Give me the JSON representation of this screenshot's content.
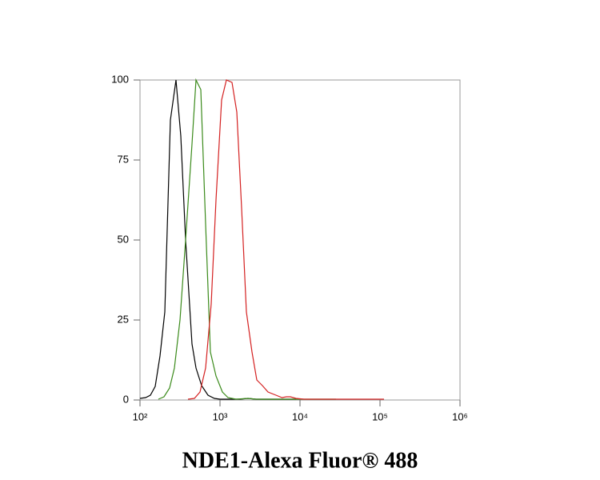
{
  "chart_data": {
    "type": "line",
    "xlabel": "NDE1-Alexa Fluor® 488",
    "xscale": "log",
    "xlim": [
      100,
      1000000
    ],
    "xticks": [
      {
        "value": 100,
        "label": "10²"
      },
      {
        "value": 1000,
        "label": "10³"
      },
      {
        "value": 10000,
        "label": "10⁴"
      },
      {
        "value": 100000,
        "label": "10⁵"
      },
      {
        "value": 1000000,
        "label": "10⁶"
      }
    ],
    "ylim": [
      0,
      100
    ],
    "yticks": [
      0,
      25,
      50,
      75,
      100
    ],
    "series": [
      {
        "color": "#000000",
        "x": [
          100,
          117.5,
          134.9,
          154.9,
          177.8,
          204.2,
          239.9,
          281.8,
          323.6,
          371.5,
          446.7,
          501.2,
          588.8,
          707.9,
          851.1,
          1000,
          1778.3,
          2238.7,
          2818.4,
          5623.4,
          8912.5
        ],
        "values": [
          0.5,
          0.75,
          1.5,
          4.25,
          13.75,
          27.5,
          87.5,
          100,
          82.5,
          50,
          17.5,
          10,
          4.5,
          1.5,
          0.5,
          0.25,
          0.25,
          0.5,
          0.25,
          0.25,
          0.25
        ]
      },
      {
        "color": "#3a8a1a",
        "x": [
          169.8,
          199.5,
          234.4,
          269.2,
          316.2,
          371.5,
          446.7,
          501.2,
          575.4,
          660.7,
          758.6,
          891.3,
          1071.5,
          1258.9,
          1584.9,
          2238.7,
          2818.4,
          4466.8,
          7079.5,
          28183.8
        ],
        "values": [
          0.25,
          1,
          3.75,
          10,
          25,
          50,
          80,
          100,
          97,
          55,
          15,
          7.5,
          2.5,
          0.75,
          0.25,
          0.5,
          0.25,
          0.25,
          0.25,
          0.25
        ]
      },
      {
        "color": "#d42020",
        "x": [
          398.1,
          478.6,
          562.3,
          660.7,
          776.2,
          891.3,
          1047.1,
          1202.3,
          1412.5,
          1621.8,
          1862.1,
          2138,
          2511.9,
          2884,
          3388.4,
          3981.1,
          5011.9,
          5956.6,
          6760.8,
          7585.8,
          8912.5,
          11220.2,
          17782.8,
          28183.8,
          112201.8
        ],
        "values": [
          0.25,
          0.5,
          2.5,
          10,
          30,
          62.5,
          93.75,
          100,
          99.25,
          90,
          60,
          27.5,
          15,
          6.25,
          4.5,
          2.5,
          1.5,
          0.75,
          1,
          1,
          0.5,
          0.25,
          0.25,
          0.25,
          0.25
        ]
      }
    ]
  }
}
